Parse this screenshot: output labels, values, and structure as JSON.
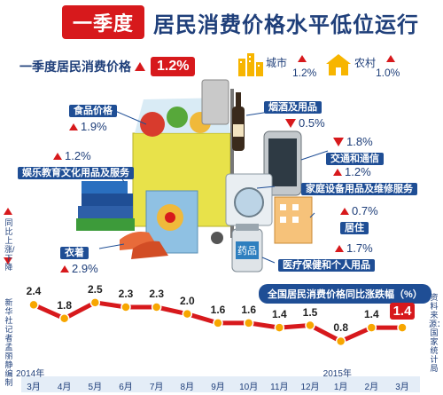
{
  "title": {
    "badge": "一季度",
    "main": "居民消费价格水平低位运行"
  },
  "headline": {
    "label": "一季度居民消费价格",
    "value": "1.2%"
  },
  "urban": {
    "label": "城市",
    "value": "1.2%"
  },
  "rural": {
    "label": "农村",
    "value": "1.0%"
  },
  "categories": [
    {
      "name": "食品价格",
      "value": "1.9%",
      "direction": "up"
    },
    {
      "name": "烟酒及用品",
      "value": "0.5%",
      "direction": "down"
    },
    {
      "name": "娱乐教育文化用品及服务",
      "value": "1.2%",
      "direction": "up"
    },
    {
      "name": "交通和通信",
      "value": "1.8%",
      "direction": "down"
    },
    {
      "name": "家庭设备用品及维修服务",
      "value": "1.2%",
      "direction": "up"
    },
    {
      "name": "居住",
      "value": "0.7%",
      "direction": "up"
    },
    {
      "name": "衣着",
      "value": "2.9%",
      "direction": "up"
    },
    {
      "name": "医疗保健和个人用品",
      "value": "1.7%",
      "direction": "up"
    }
  ],
  "side_label": "同比上涨/下降",
  "icon_names": [
    "shopping-cart-icon",
    "wine-bottle-icon",
    "smartphone-icon",
    "books-icon",
    "gift-bag-icon",
    "washing-machine-icon",
    "building-icon",
    "sneakers-icon",
    "medicine-bottle-icon",
    "city-buildings-icon",
    "village-house-icon"
  ],
  "chart_data": {
    "type": "line",
    "title": "全国居民消费价格同比涨跌幅（%）",
    "categories": [
      "3月",
      "4月",
      "5月",
      "6月",
      "7月",
      "8月",
      "9月",
      "10月",
      "11月",
      "12月",
      "1月",
      "2月",
      "3月"
    ],
    "year_labels": [
      {
        "text": "2014年",
        "index": 0
      },
      {
        "text": "2015年",
        "index": 10
      }
    ],
    "values": [
      2.4,
      1.8,
      2.5,
      2.3,
      2.3,
      2.0,
      1.6,
      1.6,
      1.4,
      1.5,
      0.8,
      1.4,
      1.4
    ],
    "value_labels": [
      "2.4",
      "1.8",
      "2.5",
      "2.3",
      "2.3",
      "2.0",
      "1.6",
      "1.6",
      "1.4",
      "1.5",
      "0.8",
      "1.4",
      "1.4"
    ],
    "ylim": [
      0,
      3
    ],
    "line_color": "#d7191c",
    "marker_color": "#f7a600"
  },
  "source": "资料来源：国家统计局",
  "credit": "新华社记者 孟丽静 编制",
  "colors": {
    "accent": "#d7191c",
    "navy": "#1f4e95",
    "title": "#1f3f7a"
  }
}
